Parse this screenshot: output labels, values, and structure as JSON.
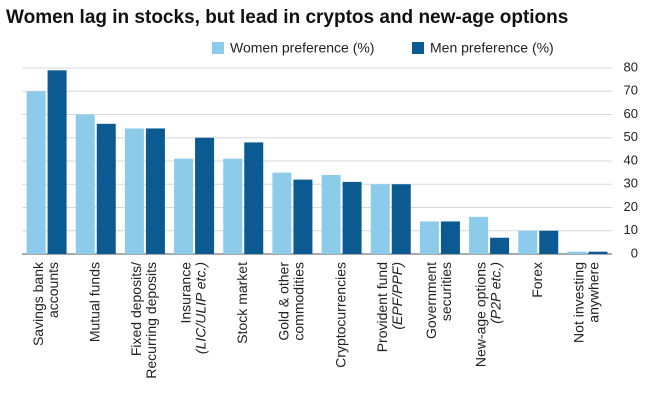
{
  "chart_data": {
    "type": "bar",
    "title": "Women lag in stocks, but lead in cryptos and new-age options",
    "categories": [
      [
        "Savings bank",
        "accounts"
      ],
      [
        "Mutual funds"
      ],
      [
        "Fixed deposits/",
        "Recurring deposits"
      ],
      [
        "Insurance",
        "(LIC/ULIP etc.)"
      ],
      [
        "Stock market"
      ],
      [
        "Gold & other",
        "commodities"
      ],
      [
        "Cryptocurrencies"
      ],
      [
        "Provident fund",
        "(EPF/PPF)"
      ],
      [
        "Government",
        "securities"
      ],
      [
        "New-age options",
        "(P2P etc.)"
      ],
      [
        "Forex"
      ],
      [
        "Not investing",
        "anywhere"
      ]
    ],
    "series": [
      {
        "name": "Women preference (%)",
        "color": "#8ccbea",
        "values": [
          70,
          60,
          54,
          41,
          41,
          35,
          34,
          30,
          14,
          16,
          10,
          1
        ]
      },
      {
        "name": "Men preference (%)",
        "color": "#0b5b92",
        "values": [
          79,
          56,
          54,
          50,
          48,
          32,
          31,
          30,
          14,
          7,
          10,
          1
        ]
      }
    ],
    "ylim": [
      0,
      80
    ],
    "yticks": [
      0,
      10,
      20,
      30,
      40,
      50,
      60,
      70,
      80
    ],
    "grid": true
  }
}
